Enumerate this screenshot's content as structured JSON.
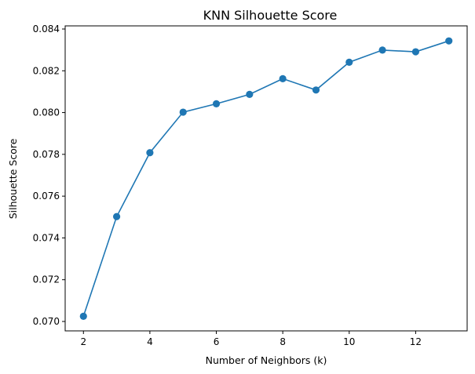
{
  "chart_data": {
    "type": "line",
    "title": "KNN Silhouette Score",
    "xlabel": "Number of Neighbors (k)",
    "ylabel": "Silhouette Score",
    "xlim": [
      1.45,
      13.55
    ],
    "ylim": [
      0.06955,
      0.08415
    ],
    "xticks": [
      2,
      4,
      6,
      8,
      10,
      12
    ],
    "xtick_labels": [
      "2",
      "4",
      "6",
      "8",
      "10",
      "12"
    ],
    "yticks": [
      0.07,
      0.072,
      0.074,
      0.076,
      0.078,
      0.08,
      0.082,
      0.084
    ],
    "ytick_labels": [
      "0.070",
      "0.072",
      "0.074",
      "0.076",
      "0.078",
      "0.080",
      "0.082",
      "0.084"
    ],
    "grid": false,
    "series": [
      {
        "color": "#1f77b4",
        "marker": "circle",
        "x": [
          2,
          3,
          4,
          5,
          6,
          7,
          8,
          9,
          10,
          11,
          12,
          13
        ],
        "y": [
          0.07025,
          0.07502,
          0.07808,
          0.08002,
          0.08042,
          0.08087,
          0.08162,
          0.08108,
          0.08241,
          0.08299,
          0.08291,
          0.08343
        ]
      }
    ]
  }
}
